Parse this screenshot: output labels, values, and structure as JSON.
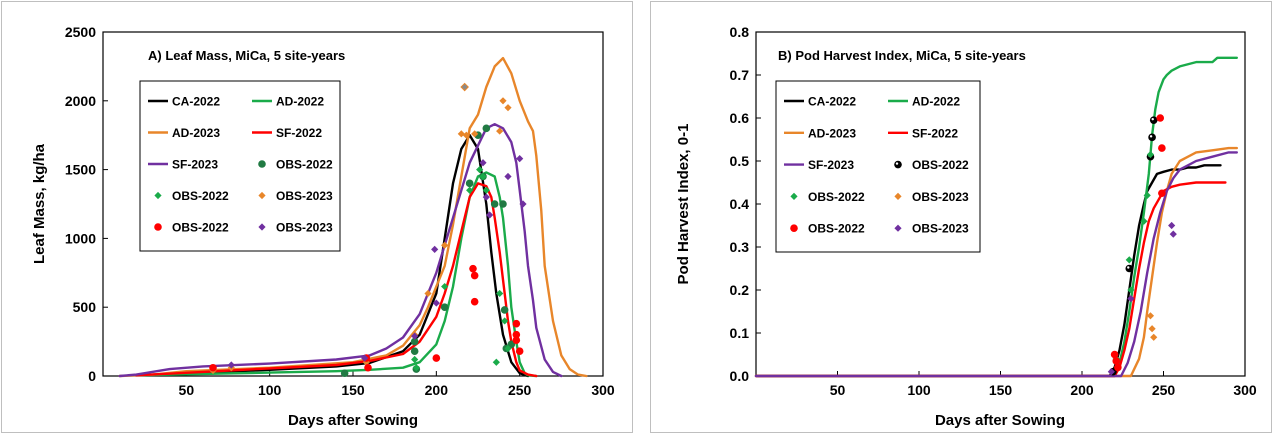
{
  "chart_data": [
    {
      "type": "line",
      "title": "A)  Leaf Mass, MiCa, 5 site-years",
      "xlabel": "Days after Sowing",
      "ylabel": "Leaf  Mass, kg/ha",
      "xlim": [
        0,
        300
      ],
      "ylim": [
        0,
        2500
      ],
      "xticks": [
        50,
        100,
        150,
        200,
        250,
        300
      ],
      "yticks": [
        0,
        500,
        1000,
        1500,
        2000,
        2500
      ],
      "legend_position": "upper-left",
      "series": [
        {
          "name": "CA-2022",
          "kind": "line",
          "color": "#000000",
          "x": [
            20,
            60,
            100,
            140,
            160,
            180,
            190,
            200,
            205,
            210,
            215,
            220,
            225,
            230,
            233,
            236,
            240,
            245,
            250,
            255
          ],
          "y": [
            5,
            25,
            45,
            70,
            95,
            180,
            300,
            600,
            1000,
            1400,
            1650,
            1750,
            1650,
            1250,
            900,
            600,
            300,
            100,
            20,
            0
          ]
        },
        {
          "name": "AD-2022",
          "kind": "line",
          "color": "#1aab4a",
          "x": [
            20,
            60,
            100,
            140,
            160,
            180,
            190,
            200,
            205,
            210,
            215,
            220,
            225,
            230,
            235,
            238,
            240,
            243,
            245,
            248,
            250,
            253,
            255,
            260
          ],
          "y": [
            5,
            15,
            25,
            35,
            45,
            60,
            100,
            230,
            400,
            650,
            1000,
            1300,
            1450,
            1480,
            1450,
            1300,
            1150,
            800,
            500,
            250,
            100,
            20,
            5,
            0
          ]
        },
        {
          "name": "AD-2023",
          "kind": "line",
          "color": "#e8862a",
          "x": [
            10,
            30,
            50,
            100,
            150,
            170,
            180,
            190,
            195,
            200,
            205,
            210,
            215,
            220,
            225,
            230,
            235,
            240,
            245,
            250,
            255,
            258,
            260,
            263,
            265,
            270,
            275,
            280,
            285,
            290
          ],
          "y": [
            0,
            10,
            35,
            60,
            100,
            150,
            220,
            370,
            500,
            650,
            800,
            1100,
            1450,
            1800,
            1900,
            2100,
            2250,
            2310,
            2200,
            2000,
            1850,
            1780,
            1600,
            1200,
            800,
            400,
            150,
            50,
            10,
            0
          ]
        },
        {
          "name": "SF-2022",
          "kind": "line",
          "color": "#ff0000",
          "x": [
            20,
            60,
            100,
            140,
            160,
            180,
            190,
            200,
            205,
            210,
            215,
            220,
            225,
            230,
            233,
            235,
            238,
            240,
            243,
            245,
            248,
            250,
            255,
            260
          ],
          "y": [
            5,
            30,
            55,
            80,
            110,
            160,
            250,
            430,
            600,
            800,
            1050,
            1300,
            1400,
            1380,
            1300,
            1150,
            900,
            700,
            400,
            250,
            100,
            40,
            10,
            0
          ]
        },
        {
          "name": "SF-2023",
          "kind": "line",
          "color": "#7030a0",
          "x": [
            10,
            20,
            40,
            60,
            100,
            140,
            160,
            170,
            180,
            190,
            200,
            210,
            220,
            230,
            235,
            240,
            245,
            248,
            250,
            253,
            255,
            258,
            260,
            265,
            270,
            275
          ],
          "y": [
            0,
            10,
            50,
            70,
            90,
            120,
            150,
            200,
            280,
            450,
            750,
            1150,
            1550,
            1800,
            1830,
            1800,
            1700,
            1550,
            1350,
            1050,
            800,
            550,
            350,
            120,
            30,
            0
          ]
        },
        {
          "name": "OBS-2022",
          "kind": "marker",
          "marker": "circle",
          "color": "#217a43",
          "x": [
            145,
            187,
            187,
            188,
            205,
            220,
            225,
            228,
            230,
            235,
            240,
            241,
            242,
            245
          ],
          "y": [
            20,
            250,
            180,
            50,
            500,
            1400,
            1750,
            1450,
            1800,
            1250,
            1250,
            480,
            200,
            230
          ]
        },
        {
          "name": "OBS-2022",
          "kind": "marker",
          "marker": "diamond",
          "color": "#1aab4a",
          "x": [
            187,
            188,
            205,
            220,
            226,
            228,
            230,
            236,
            238,
            241,
            243
          ],
          "y": [
            120,
            60,
            650,
            1350,
            1500,
            1450,
            1350,
            100,
            600,
            400,
            200
          ]
        },
        {
          "name": "OBS-2023",
          "kind": "marker",
          "marker": "diamond",
          "color": "#e8862a",
          "x": [
            66,
            77,
            158,
            187,
            195,
            205,
            215,
            218,
            223,
            238,
            240,
            243
          ],
          "y": [
            40,
            60,
            100,
            300,
            600,
            950,
            1760,
            1750,
            1760,
            1780,
            2000,
            1950
          ]
        },
        {
          "name": "OBS-2022",
          "kind": "marker",
          "marker": "circle",
          "color": "#ff0000",
          "x": [
            66,
            158,
            159,
            200,
            222,
            223,
            223,
            248,
            248,
            248,
            250
          ],
          "y": [
            60,
            130,
            60,
            130,
            780,
            730,
            540,
            380,
            300,
            260,
            180
          ]
        },
        {
          "name": "OBS-2023",
          "kind": "marker",
          "marker": "diamond",
          "color": "#7030a0",
          "x": [
            77,
            157,
            187,
            199,
            200,
            228,
            230,
            232,
            243,
            250,
            252
          ],
          "y": [
            80,
            130,
            290,
            920,
            530,
            1550,
            1300,
            1170,
            1450,
            1580,
            1250
          ]
        }
      ],
      "extra_markers": [
        {
          "marker": "diamond",
          "color": "#8a8a8a",
          "stroke": "#e8862a",
          "x": 217,
          "y": 2100
        }
      ]
    },
    {
      "type": "line",
      "title": "B)  Pod Harvest Index, MiCa, 5 site-years",
      "xlabel": "Days after Sowing",
      "ylabel": "Pod  Harvest  Index,  0-1",
      "xlim": [
        0,
        300
      ],
      "ylim": [
        0,
        0.8
      ],
      "xticks": [
        50,
        100,
        150,
        200,
        250,
        300
      ],
      "yticks": [
        0.0,
        0.1,
        0.2,
        0.3,
        0.4,
        0.5,
        0.6,
        0.7,
        0.8
      ],
      "ytick_labels": [
        "0.0",
        "0.1",
        "0.2",
        "0.3",
        "0.4",
        "0.5",
        "0.6",
        "0.7",
        "0.8"
      ],
      "legend_position": "upper-left",
      "series": [
        {
          "name": "CA-2022",
          "kind": "line",
          "color": "#000000",
          "x": [
            0,
            217,
            220,
            223,
            226,
            229,
            232,
            235,
            238,
            240,
            243,
            246,
            250,
            255,
            260,
            265,
            270,
            275,
            280,
            285
          ],
          "y": [
            0,
            0,
            0.02,
            0.06,
            0.12,
            0.2,
            0.28,
            0.35,
            0.4,
            0.43,
            0.45,
            0.47,
            0.475,
            0.48,
            0.48,
            0.485,
            0.485,
            0.49,
            0.49,
            0.49
          ]
        },
        {
          "name": "AD-2022",
          "kind": "line",
          "color": "#1aab4a",
          "x": [
            0,
            220,
            223,
            226,
            229,
            232,
            235,
            238,
            241,
            243,
            245,
            247,
            250,
            252,
            255,
            260,
            270,
            280,
            283,
            285,
            290,
            295
          ],
          "y": [
            0,
            0,
            0.03,
            0.08,
            0.15,
            0.23,
            0.3,
            0.38,
            0.47,
            0.56,
            0.62,
            0.66,
            0.69,
            0.7,
            0.71,
            0.72,
            0.73,
            0.73,
            0.74,
            0.74,
            0.74,
            0.74
          ]
        },
        {
          "name": "AD-2023",
          "kind": "line",
          "color": "#e8862a",
          "x": [
            0,
            230,
            235,
            238,
            240,
            243,
            246,
            249,
            252,
            255,
            260,
            265,
            270,
            280,
            290,
            295
          ],
          "y": [
            0,
            0,
            0.04,
            0.09,
            0.15,
            0.23,
            0.31,
            0.38,
            0.43,
            0.47,
            0.5,
            0.51,
            0.52,
            0.525,
            0.53,
            0.53
          ]
        },
        {
          "name": "SF-2022",
          "kind": "line",
          "color": "#ff0000",
          "x": [
            0,
            220,
            223,
            226,
            229,
            232,
            235,
            238,
            241,
            244,
            247,
            250,
            255,
            260,
            270,
            280,
            288
          ],
          "y": [
            0,
            0,
            0.02,
            0.06,
            0.11,
            0.18,
            0.25,
            0.31,
            0.36,
            0.39,
            0.41,
            0.43,
            0.44,
            0.445,
            0.45,
            0.45,
            0.45
          ]
        },
        {
          "name": "SF-2023",
          "kind": "line",
          "color": "#7030a0",
          "x": [
            0,
            224,
            228,
            232,
            236,
            240,
            244,
            248,
            252,
            256,
            260,
            265,
            270,
            280,
            290,
            295
          ],
          "y": [
            0,
            0,
            0.03,
            0.08,
            0.15,
            0.24,
            0.32,
            0.38,
            0.43,
            0.46,
            0.48,
            0.49,
            0.5,
            0.51,
            0.52,
            0.52
          ]
        }
      ],
      "markers": [
        {
          "name": "OBS-2022",
          "marker": "circle",
          "color": "#000000",
          "x": [
            219,
            229,
            242,
            243,
            244
          ],
          "y": [
            0.01,
            0.25,
            0.51,
            0.555,
            0.595
          ]
        },
        {
          "name": "OBS-2022",
          "marker": "diamond",
          "color": "#1aab4a",
          "x": [
            221,
            229,
            230,
            238,
            240,
            242
          ],
          "y": [
            0.04,
            0.27,
            0.2,
            0.36,
            0.42,
            0.515
          ]
        },
        {
          "name": "OBS-2023",
          "marker": "diamond",
          "color": "#e8862a",
          "x": [
            242,
            243,
            244
          ],
          "y": [
            0.14,
            0.11,
            0.09
          ]
        },
        {
          "name": "OBS-2022",
          "marker": "circle",
          "color": "#ff0000",
          "x": [
            220,
            221,
            222,
            248,
            249,
            249
          ],
          "y": [
            0.05,
            0.035,
            0.02,
            0.6,
            0.53,
            0.425
          ]
        },
        {
          "name": "OBS-2023",
          "marker": "diamond",
          "color": "#7030a0",
          "x": [
            218,
            230,
            255,
            256
          ],
          "y": [
            0.01,
            0.18,
            0.35,
            0.33
          ]
        }
      ],
      "legend_order": [
        {
          "name": "CA-2022",
          "kind": "line",
          "color": "#000000"
        },
        {
          "name": "AD-2022",
          "kind": "line",
          "color": "#1aab4a"
        },
        {
          "name": "AD-2023",
          "kind": "line",
          "color": "#e8862a"
        },
        {
          "name": "SF-2022",
          "kind": "line",
          "color": "#ff0000"
        },
        {
          "name": "SF-2023",
          "kind": "line",
          "color": "#7030a0"
        },
        {
          "name": "OBS-2022",
          "kind": "marker",
          "marker": "circle-black",
          "color": "#000000"
        },
        {
          "name": "OBS-2022",
          "kind": "marker",
          "marker": "diamond",
          "color": "#1aab4a"
        },
        {
          "name": "OBS-2023",
          "kind": "marker",
          "marker": "diamond",
          "color": "#e8862a"
        },
        {
          "name": "OBS-2022",
          "kind": "marker",
          "marker": "circle",
          "color": "#ff0000"
        },
        {
          "name": "OBS-2023",
          "kind": "marker",
          "marker": "diamond",
          "color": "#7030a0"
        }
      ]
    }
  ]
}
